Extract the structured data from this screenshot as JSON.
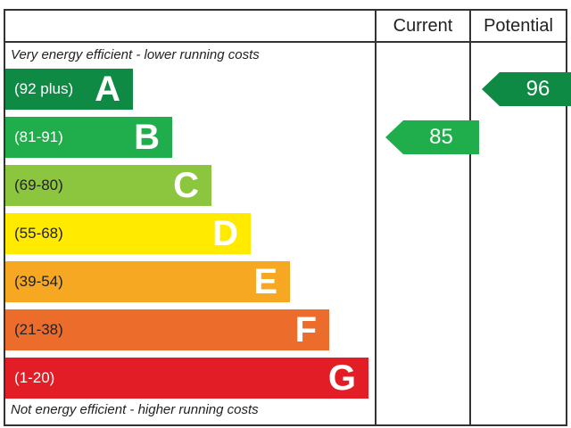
{
  "chart_data": {
    "type": "bar",
    "headers": {
      "current": "Current",
      "potential": "Potential"
    },
    "top_note": "Very energy efficient - lower running costs",
    "bottom_note": "Not energy efficient - higher running costs",
    "bands": [
      {
        "letter": "A",
        "range": "(92 plus)",
        "color": "#0f8a45",
        "text_color": "#ffffff"
      },
      {
        "letter": "B",
        "range": "(81-91)",
        "color": "#1fae4b",
        "text_color": "#ffffff"
      },
      {
        "letter": "C",
        "range": "(69-80)",
        "color": "#8cc63f",
        "text_color": "#222222"
      },
      {
        "letter": "D",
        "range": "(55-68)",
        "color": "#ffea00",
        "text_color": "#222222"
      },
      {
        "letter": "E",
        "range": "(39-54)",
        "color": "#f7a823",
        "text_color": "#222222"
      },
      {
        "letter": "F",
        "range": "(21-38)",
        "color": "#ec6c2c",
        "text_color": "#222222"
      },
      {
        "letter": "G",
        "range": "(1-20)",
        "color": "#e21d26",
        "text_color": "#ffffff"
      }
    ],
    "current": {
      "value": 85,
      "band": "B",
      "color": "#1fae4b"
    },
    "potential": {
      "value": 96,
      "band": "A",
      "color": "#0f8a45"
    }
  }
}
